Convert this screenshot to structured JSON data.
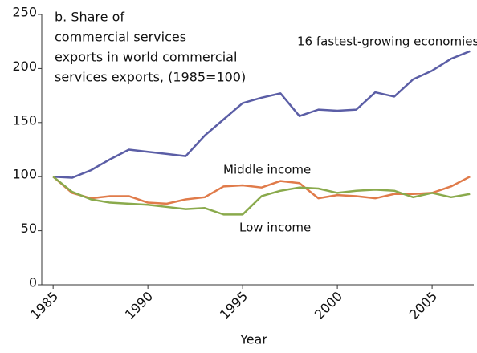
{
  "chart_data": {
    "type": "line",
    "title": [
      "b. Share of",
      "commercial services",
      "exports in world commercial",
      "services exports, (1985=100)"
    ],
    "x_label": "Year",
    "x": [
      1985,
      1986,
      1987,
      1988,
      1989,
      1990,
      1991,
      1992,
      1993,
      1994,
      1995,
      1996,
      1997,
      1998,
      1999,
      2000,
      2001,
      2002,
      2003,
      2004,
      2005,
      2006,
      2007
    ],
    "series": [
      {
        "name": "16 fastest-growing economies",
        "color": "#5b5ea6",
        "values": [
          100,
          99,
          106,
          116,
          125,
          123,
          121,
          119,
          138,
          153,
          168,
          173,
          177,
          156,
          162,
          161,
          162,
          178,
          174,
          190,
          198,
          209,
          216
        ]
      },
      {
        "name": "Middle income",
        "color": "#e07b4a",
        "values": [
          100,
          85,
          80,
          82,
          82,
          76,
          75,
          79,
          81,
          91,
          92,
          90,
          96,
          94,
          80,
          83,
          82,
          80,
          84,
          84,
          85,
          91,
          100
        ]
      },
      {
        "name": "Low income",
        "color": "#8aaa4c",
        "values": [
          100,
          86,
          79,
          76,
          75,
          74,
          72,
          70,
          71,
          65,
          65,
          82,
          87,
          90,
          89,
          85,
          87,
          88,
          87,
          81,
          85,
          81,
          84
        ]
      }
    ],
    "xlim": [
      1984.4,
      2007.2
    ],
    "xticks": [
      1985,
      1990,
      1995,
      2000,
      2005
    ],
    "ylim": [
      0,
      250
    ],
    "yticks": [
      0,
      50,
      100,
      150,
      200,
      250
    ]
  }
}
